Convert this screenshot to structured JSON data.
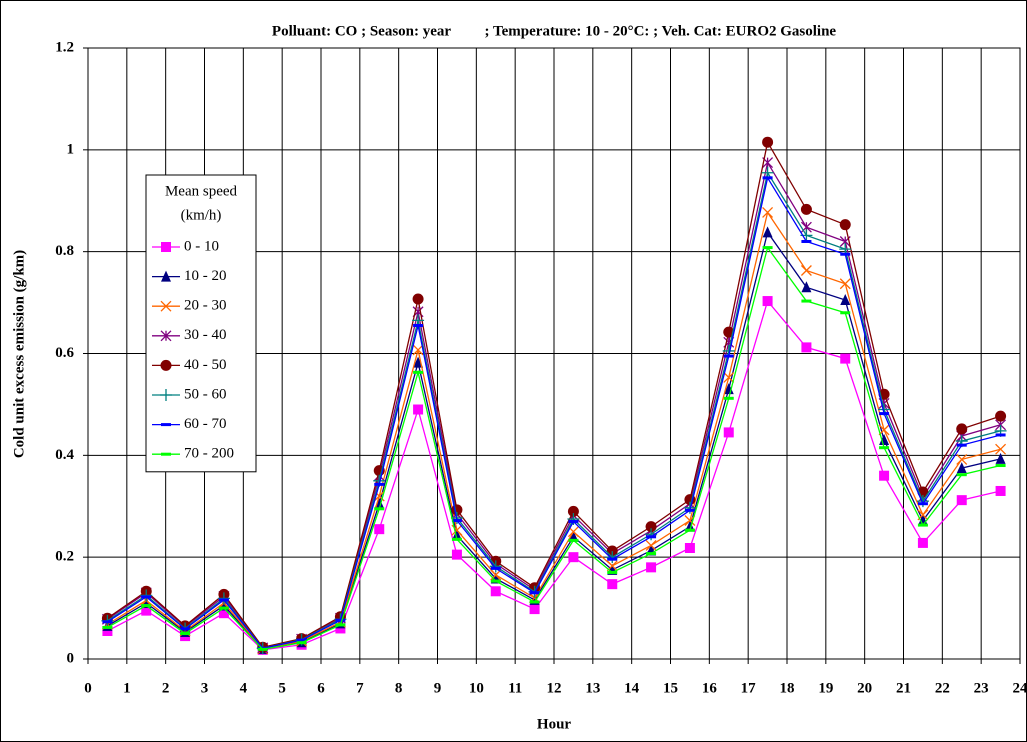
{
  "chart_data": {
    "type": "line",
    "title": "Polluant: CO ; Season: year         ; Temperature: 10 - 20°C: ; Veh. Cat: EURO2 Gasoline",
    "xlabel": "Hour",
    "ylabel": "Cold unit excess emission (g/km)",
    "legend_title": [
      "Mean speed",
      "(km/h)"
    ],
    "x": [
      0.5,
      1.5,
      2.5,
      3.5,
      4.5,
      5.5,
      6.5,
      7.5,
      8.5,
      9.5,
      10.5,
      11.5,
      12.5,
      13.5,
      14.5,
      15.5,
      16.5,
      17.5,
      18.5,
      19.5,
      20.5,
      21.5,
      22.5,
      23.5
    ],
    "xlim": [
      0,
      24
    ],
    "xticks": [
      0,
      1,
      2,
      3,
      4,
      5,
      6,
      7,
      8,
      9,
      10,
      11,
      12,
      13,
      14,
      15,
      16,
      17,
      18,
      19,
      20,
      21,
      22,
      23,
      24
    ],
    "ylim": [
      0,
      1.2
    ],
    "yticks": [
      0,
      0.2,
      0.4,
      0.6,
      0.8,
      1,
      1.2
    ],
    "grid": true,
    "series": [
      {
        "name": "0 - 10",
        "color": "#ff00ff",
        "marker": "square",
        "values": [
          0.055,
          0.095,
          0.045,
          0.09,
          0.018,
          0.028,
          0.06,
          0.255,
          0.49,
          0.205,
          0.133,
          0.098,
          0.2,
          0.147,
          0.18,
          0.218,
          0.445,
          0.703,
          0.612,
          0.59,
          0.36,
          0.228,
          0.312,
          0.33
        ]
      },
      {
        "name": "10 - 20",
        "color": "#000080",
        "marker": "triangle",
        "values": [
          0.065,
          0.11,
          0.053,
          0.105,
          0.02,
          0.033,
          0.07,
          0.305,
          0.582,
          0.243,
          0.158,
          0.116,
          0.24,
          0.175,
          0.213,
          0.26,
          0.53,
          0.838,
          0.73,
          0.705,
          0.43,
          0.272,
          0.375,
          0.393
        ]
      },
      {
        "name": "20 - 30",
        "color": "#ff6600",
        "marker": "x",
        "values": [
          0.068,
          0.115,
          0.055,
          0.11,
          0.02,
          0.035,
          0.072,
          0.32,
          0.607,
          0.253,
          0.165,
          0.12,
          0.25,
          0.183,
          0.223,
          0.272,
          0.553,
          0.877,
          0.763,
          0.737,
          0.45,
          0.283,
          0.392,
          0.412
        ]
      },
      {
        "name": "30 - 40",
        "color": "#800080",
        "marker": "star",
        "values": [
          0.078,
          0.13,
          0.063,
          0.123,
          0.022,
          0.039,
          0.08,
          0.36,
          0.682,
          0.285,
          0.187,
          0.136,
          0.282,
          0.207,
          0.252,
          0.305,
          0.622,
          0.975,
          0.848,
          0.82,
          0.502,
          0.318,
          0.438,
          0.46
        ]
      },
      {
        "name": "40 - 50",
        "color": "#800000",
        "marker": "circle",
        "values": [
          0.08,
          0.133,
          0.065,
          0.127,
          0.023,
          0.04,
          0.083,
          0.37,
          0.707,
          0.293,
          0.192,
          0.14,
          0.29,
          0.212,
          0.26,
          0.313,
          0.642,
          1.015,
          0.883,
          0.853,
          0.52,
          0.328,
          0.452,
          0.477
        ]
      },
      {
        "name": "50 - 60",
        "color": "#008080",
        "marker": "plus",
        "values": [
          0.075,
          0.125,
          0.06,
          0.119,
          0.021,
          0.038,
          0.078,
          0.35,
          0.665,
          0.277,
          0.182,
          0.132,
          0.275,
          0.2,
          0.245,
          0.297,
          0.605,
          0.955,
          0.832,
          0.805,
          0.49,
          0.31,
          0.428,
          0.448
        ]
      },
      {
        "name": "60 - 70",
        "color": "#0000ff",
        "marker": "dash",
        "values": [
          0.073,
          0.122,
          0.059,
          0.116,
          0.021,
          0.037,
          0.076,
          0.343,
          0.655,
          0.272,
          0.178,
          0.13,
          0.27,
          0.196,
          0.24,
          0.292,
          0.595,
          0.945,
          0.82,
          0.795,
          0.482,
          0.305,
          0.42,
          0.44
        ]
      },
      {
        "name": "70 - 200",
        "color": "#00ff00",
        "marker": "dash",
        "values": [
          0.062,
          0.105,
          0.05,
          0.1,
          0.019,
          0.032,
          0.067,
          0.295,
          0.563,
          0.235,
          0.153,
          0.112,
          0.233,
          0.17,
          0.207,
          0.253,
          0.512,
          0.808,
          0.703,
          0.68,
          0.415,
          0.263,
          0.362,
          0.38
        ]
      }
    ]
  }
}
